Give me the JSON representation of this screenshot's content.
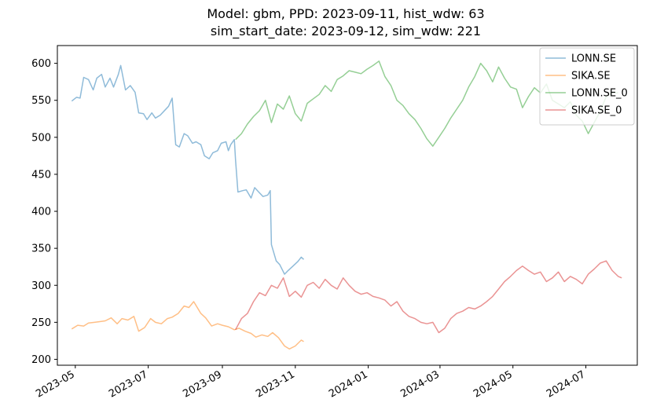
{
  "chart_data": {
    "type": "line",
    "title": "Model: gbm, PPD: 2023-09-11, hist_wdw: 63",
    "subtitle": "sim_start_date: 2023-09-12, sim_wdw: 221",
    "xlabel": "",
    "ylabel": "",
    "xlim": [
      "2023-04-16",
      "2024-08-13"
    ],
    "ylim": [
      192,
      624
    ],
    "x_ticks": [
      "2023-05",
      "2023-07",
      "2023-09",
      "2023-11",
      "2024-01",
      "2024-03",
      "2024-05",
      "2024-07"
    ],
    "y_ticks": [
      200,
      250,
      300,
      350,
      400,
      450,
      500,
      550,
      600
    ],
    "grid": false,
    "legend_position": "top-right",
    "series": [
      {
        "name": "LONN.SE",
        "color": "#1f77b4",
        "points": [
          [
            "2023-04-28",
            549
          ],
          [
            "2023-05-02",
            554
          ],
          [
            "2023-05-05",
            553
          ],
          [
            "2023-05-08",
            581
          ],
          [
            "2023-05-12",
            578
          ],
          [
            "2023-05-16",
            564
          ],
          [
            "2023-05-19",
            580
          ],
          [
            "2023-05-23",
            585
          ],
          [
            "2023-05-26",
            568
          ],
          [
            "2023-05-30",
            580
          ],
          [
            "2023-06-02",
            568
          ],
          [
            "2023-06-06",
            585
          ],
          [
            "2023-06-08",
            597
          ],
          [
            "2023-06-12",
            564
          ],
          [
            "2023-06-16",
            570
          ],
          [
            "2023-06-20",
            561
          ],
          [
            "2023-06-23",
            533
          ],
          [
            "2023-06-27",
            532
          ],
          [
            "2023-06-30",
            524
          ],
          [
            "2023-07-04",
            533
          ],
          [
            "2023-07-07",
            526
          ],
          [
            "2023-07-11",
            530
          ],
          [
            "2023-07-14",
            535
          ],
          [
            "2023-07-18",
            542
          ],
          [
            "2023-07-21",
            553
          ],
          [
            "2023-07-24",
            490
          ],
          [
            "2023-07-27",
            487
          ],
          [
            "2023-07-31",
            505
          ],
          [
            "2023-08-03",
            502
          ],
          [
            "2023-08-07",
            492
          ],
          [
            "2023-08-10",
            494
          ],
          [
            "2023-08-14",
            490
          ],
          [
            "2023-08-17",
            475
          ],
          [
            "2023-08-21",
            471
          ],
          [
            "2023-08-24",
            479
          ],
          [
            "2023-08-28",
            482
          ],
          [
            "2023-08-31",
            492
          ],
          [
            "2023-09-04",
            494
          ],
          [
            "2023-09-06",
            482
          ],
          [
            "2023-09-08",
            490
          ],
          [
            "2023-09-11",
            497
          ],
          [
            "2023-09-12",
            470
          ],
          [
            "2023-09-14",
            426
          ],
          [
            "2023-09-18",
            428
          ],
          [
            "2023-09-21",
            429
          ],
          [
            "2023-09-25",
            418
          ],
          [
            "2023-09-28",
            432
          ],
          [
            "2023-10-02",
            425
          ],
          [
            "2023-10-05",
            420
          ],
          [
            "2023-10-09",
            422
          ],
          [
            "2023-10-11",
            428
          ],
          [
            "2023-10-12",
            355
          ],
          [
            "2023-10-16",
            333
          ],
          [
            "2023-10-19",
            328
          ],
          [
            "2023-10-23",
            315
          ],
          [
            "2023-10-26",
            320
          ],
          [
            "2023-10-30",
            326
          ],
          [
            "2023-11-03",
            332
          ],
          [
            "2023-11-06",
            338
          ],
          [
            "2023-11-08",
            335
          ]
        ]
      },
      {
        "name": "SIKA.SE",
        "color": "#ff7f0e",
        "points": [
          [
            "2023-04-28",
            241
          ],
          [
            "2023-05-03",
            246
          ],
          [
            "2023-05-08",
            245
          ],
          [
            "2023-05-12",
            249
          ],
          [
            "2023-05-17",
            250
          ],
          [
            "2023-05-22",
            251
          ],
          [
            "2023-05-26",
            252
          ],
          [
            "2023-05-31",
            256
          ],
          [
            "2023-06-05",
            248
          ],
          [
            "2023-06-09",
            255
          ],
          [
            "2023-06-14",
            253
          ],
          [
            "2023-06-19",
            258
          ],
          [
            "2023-06-23",
            238
          ],
          [
            "2023-06-28",
            243
          ],
          [
            "2023-07-03",
            255
          ],
          [
            "2023-07-07",
            250
          ],
          [
            "2023-07-12",
            248
          ],
          [
            "2023-07-17",
            255
          ],
          [
            "2023-07-21",
            257
          ],
          [
            "2023-07-26",
            262
          ],
          [
            "2023-07-31",
            272
          ],
          [
            "2023-08-04",
            270
          ],
          [
            "2023-08-08",
            278
          ],
          [
            "2023-08-14",
            262
          ],
          [
            "2023-08-18",
            256
          ],
          [
            "2023-08-23",
            245
          ],
          [
            "2023-08-28",
            248
          ],
          [
            "2023-09-01",
            246
          ],
          [
            "2023-09-06",
            244
          ],
          [
            "2023-09-11",
            240
          ],
          [
            "2023-09-15",
            242
          ],
          [
            "2023-09-20",
            238
          ],
          [
            "2023-09-25",
            235
          ],
          [
            "2023-09-29",
            230
          ],
          [
            "2023-10-04",
            233
          ],
          [
            "2023-10-09",
            231
          ],
          [
            "2023-10-13",
            236
          ],
          [
            "2023-10-18",
            229
          ],
          [
            "2023-10-23",
            218
          ],
          [
            "2023-10-27",
            214
          ],
          [
            "2023-11-01",
            218
          ],
          [
            "2023-11-06",
            226
          ],
          [
            "2023-11-08",
            224
          ]
        ]
      },
      {
        "name": "LONN.SE_0",
        "color": "#2ca02c",
        "points": [
          [
            "2023-09-12",
            497
          ],
          [
            "2023-09-17",
            505
          ],
          [
            "2023-09-22",
            518
          ],
          [
            "2023-09-27",
            528
          ],
          [
            "2023-10-02",
            536
          ],
          [
            "2023-10-07",
            550
          ],
          [
            "2023-10-12",
            520
          ],
          [
            "2023-10-17",
            545
          ],
          [
            "2023-10-22",
            538
          ],
          [
            "2023-10-27",
            556
          ],
          [
            "2023-11-01",
            532
          ],
          [
            "2023-11-06",
            522
          ],
          [
            "2023-11-11",
            546
          ],
          [
            "2023-11-16",
            552
          ],
          [
            "2023-11-21",
            558
          ],
          [
            "2023-11-26",
            570
          ],
          [
            "2023-12-01",
            562
          ],
          [
            "2023-12-06",
            578
          ],
          [
            "2023-12-11",
            583
          ],
          [
            "2023-12-16",
            590
          ],
          [
            "2023-12-21",
            588
          ],
          [
            "2023-12-26",
            586
          ],
          [
            "2023-12-31",
            592
          ],
          [
            "2024-01-05",
            597
          ],
          [
            "2024-01-10",
            603
          ],
          [
            "2024-01-15",
            582
          ],
          [
            "2024-01-20",
            570
          ],
          [
            "2024-01-25",
            550
          ],
          [
            "2024-01-30",
            543
          ],
          [
            "2024-02-04",
            532
          ],
          [
            "2024-02-09",
            524
          ],
          [
            "2024-02-14",
            512
          ],
          [
            "2024-02-19",
            498
          ],
          [
            "2024-02-24",
            488
          ],
          [
            "2024-02-29",
            500
          ],
          [
            "2024-03-05",
            512
          ],
          [
            "2024-03-10",
            526
          ],
          [
            "2024-03-15",
            538
          ],
          [
            "2024-03-20",
            550
          ],
          [
            "2024-03-25",
            568
          ],
          [
            "2024-03-30",
            582
          ],
          [
            "2024-04-04",
            600
          ],
          [
            "2024-04-09",
            590
          ],
          [
            "2024-04-14",
            575
          ],
          [
            "2024-04-19",
            595
          ],
          [
            "2024-04-24",
            580
          ],
          [
            "2024-04-29",
            568
          ],
          [
            "2024-05-04",
            565
          ],
          [
            "2024-05-09",
            540
          ],
          [
            "2024-05-14",
            555
          ],
          [
            "2024-05-19",
            567
          ],
          [
            "2024-05-24",
            560
          ],
          [
            "2024-05-29",
            572
          ],
          [
            "2024-06-03",
            550
          ],
          [
            "2024-06-08",
            545
          ],
          [
            "2024-06-13",
            540
          ],
          [
            "2024-06-18",
            548
          ],
          [
            "2024-06-23",
            530
          ],
          [
            "2024-06-28",
            522
          ],
          [
            "2024-07-03",
            505
          ],
          [
            "2024-07-08",
            520
          ],
          [
            "2024-07-13",
            535
          ],
          [
            "2024-07-18",
            555
          ],
          [
            "2024-07-23",
            560
          ],
          [
            "2024-07-28",
            560
          ]
        ]
      },
      {
        "name": "SIKA.SE_0",
        "color": "#d62728",
        "points": [
          [
            "2023-09-12",
            240
          ],
          [
            "2023-09-17",
            255
          ],
          [
            "2023-09-22",
            262
          ],
          [
            "2023-09-27",
            278
          ],
          [
            "2023-10-02",
            290
          ],
          [
            "2023-10-07",
            286
          ],
          [
            "2023-10-12",
            300
          ],
          [
            "2023-10-17",
            296
          ],
          [
            "2023-10-22",
            310
          ],
          [
            "2023-10-27",
            285
          ],
          [
            "2023-11-01",
            292
          ],
          [
            "2023-11-06",
            284
          ],
          [
            "2023-11-11",
            300
          ],
          [
            "2023-11-16",
            304
          ],
          [
            "2023-11-21",
            296
          ],
          [
            "2023-11-26",
            308
          ],
          [
            "2023-12-01",
            300
          ],
          [
            "2023-12-06",
            295
          ],
          [
            "2023-12-11",
            310
          ],
          [
            "2023-12-16",
            300
          ],
          [
            "2023-12-21",
            292
          ],
          [
            "2023-12-26",
            288
          ],
          [
            "2023-12-31",
            290
          ],
          [
            "2024-01-05",
            285
          ],
          [
            "2024-01-10",
            283
          ],
          [
            "2024-01-15",
            280
          ],
          [
            "2024-01-20",
            272
          ],
          [
            "2024-01-25",
            278
          ],
          [
            "2024-01-30",
            265
          ],
          [
            "2024-02-04",
            258
          ],
          [
            "2024-02-09",
            255
          ],
          [
            "2024-02-14",
            250
          ],
          [
            "2024-02-19",
            248
          ],
          [
            "2024-02-24",
            250
          ],
          [
            "2024-02-29",
            236
          ],
          [
            "2024-03-05",
            242
          ],
          [
            "2024-03-10",
            255
          ],
          [
            "2024-03-15",
            262
          ],
          [
            "2024-03-20",
            265
          ],
          [
            "2024-03-25",
            270
          ],
          [
            "2024-03-30",
            268
          ],
          [
            "2024-04-04",
            272
          ],
          [
            "2024-04-09",
            278
          ],
          [
            "2024-04-14",
            285
          ],
          [
            "2024-04-19",
            295
          ],
          [
            "2024-04-24",
            305
          ],
          [
            "2024-04-29",
            312
          ],
          [
            "2024-05-04",
            320
          ],
          [
            "2024-05-09",
            326
          ],
          [
            "2024-05-14",
            320
          ],
          [
            "2024-05-19",
            315
          ],
          [
            "2024-05-24",
            318
          ],
          [
            "2024-05-29",
            305
          ],
          [
            "2024-06-03",
            310
          ],
          [
            "2024-06-08",
            318
          ],
          [
            "2024-06-13",
            305
          ],
          [
            "2024-06-18",
            312
          ],
          [
            "2024-06-23",
            308
          ],
          [
            "2024-06-28",
            302
          ],
          [
            "2024-07-03",
            315
          ],
          [
            "2024-07-08",
            322
          ],
          [
            "2024-07-13",
            330
          ],
          [
            "2024-07-18",
            333
          ],
          [
            "2024-07-23",
            320
          ],
          [
            "2024-07-28",
            312
          ],
          [
            "2024-07-31",
            310
          ]
        ]
      }
    ]
  }
}
